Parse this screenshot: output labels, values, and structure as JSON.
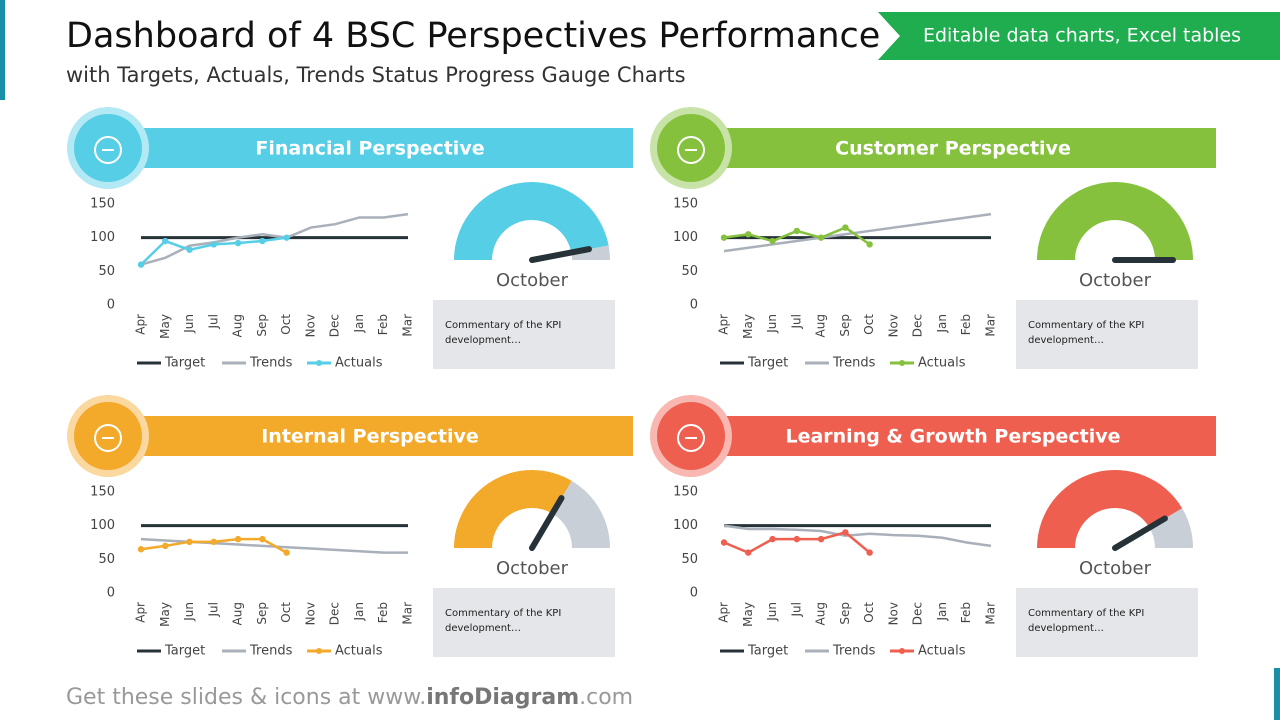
{
  "header": {
    "title": "Dashboard of 4 BSC Perspectives Performance",
    "subtitle": "with Targets, Actuals, Trends Status Progress Gauge Charts",
    "badge": "Editable data charts, Excel tables"
  },
  "footer": {
    "prefix": "Get these slides & icons at www.",
    "brand": "infoDiagram",
    "suffix": ".com"
  },
  "chart_data": [
    {
      "type": "line",
      "title": "Financial Perspective",
      "color": "#56cfe6",
      "commentary": "Commentary of the KPI development…",
      "categories": [
        "Apr",
        "May",
        "Jun",
        "Jul",
        "Aug",
        "Sep",
        "Oct",
        "Nov",
        "Dec",
        "Jan",
        "Feb",
        "Mar"
      ],
      "ylim": [
        0,
        150
      ],
      "yticks": [
        0,
        50,
        100,
        150
      ],
      "series": [
        {
          "name": "Target",
          "color": "#263238",
          "values": [
            100,
            100,
            100,
            100,
            100,
            100,
            100,
            100,
            100,
            100,
            100,
            100
          ]
        },
        {
          "name": "Trends",
          "color": "#a9b0ba",
          "values": [
            60,
            70,
            88,
            93,
            100,
            105,
            100,
            115,
            120,
            130,
            130,
            135
          ]
        },
        {
          "name": "Actuals",
          "color": "#56cfe6",
          "values": [
            60,
            95,
            82,
            90,
            92,
            95,
            100,
            null,
            null,
            null,
            null,
            null
          ]
        }
      ],
      "gauge": {
        "type": "gauge",
        "label": "October",
        "value": 94,
        "lim": [
          0,
          100
        ]
      }
    },
    {
      "type": "line",
      "title": "Customer Perspective",
      "color": "#85c13d",
      "commentary": "Commentary of the KPI development…",
      "categories": [
        "Apr",
        "May",
        "Jun",
        "Jul",
        "Aug",
        "Sep",
        "Oct",
        "Nov",
        "Dec",
        "Jan",
        "Feb",
        "Mar"
      ],
      "ylim": [
        0,
        150
      ],
      "yticks": [
        0,
        50,
        100,
        150
      ],
      "series": [
        {
          "name": "Target",
          "color": "#263238",
          "values": [
            100,
            100,
            100,
            100,
            100,
            100,
            100,
            100,
            100,
            100,
            100,
            100
          ]
        },
        {
          "name": "Trends",
          "color": "#a9b0ba",
          "values": [
            80,
            85,
            90,
            95,
            100,
            105,
            110,
            115,
            120,
            125,
            130,
            135
          ]
        },
        {
          "name": "Actuals",
          "color": "#85c13d",
          "values": [
            100,
            105,
            95,
            110,
            100,
            115,
            90,
            null,
            null,
            null,
            null,
            null
          ]
        }
      ],
      "gauge": {
        "type": "gauge",
        "label": "October",
        "value": 100,
        "lim": [
          0,
          100
        ]
      }
    },
    {
      "type": "line",
      "title": "Internal Perspective",
      "color": "#f3a92a",
      "commentary": "Commentary of the KPI development…",
      "categories": [
        "Apr",
        "May",
        "Jun",
        "Jul",
        "Aug",
        "Sep",
        "Oct",
        "Nov",
        "Dec",
        "Jan",
        "Feb",
        "Mar"
      ],
      "ylim": [
        0,
        150
      ],
      "yticks": [
        0,
        50,
        100,
        150
      ],
      "series": [
        {
          "name": "Target",
          "color": "#263238",
          "values": [
            100,
            100,
            100,
            100,
            100,
            100,
            100,
            100,
            100,
            100,
            100,
            100
          ]
        },
        {
          "name": "Trends",
          "color": "#a9b0ba",
          "values": [
            80,
            78,
            76,
            74,
            72,
            70,
            68,
            66,
            64,
            62,
            60,
            60
          ]
        },
        {
          "name": "Actuals",
          "color": "#f3a92a",
          "values": [
            65,
            70,
            76,
            76,
            80,
            80,
            60,
            null,
            null,
            null,
            null,
            null
          ]
        }
      ],
      "gauge": {
        "type": "gauge",
        "label": "October",
        "value": 67,
        "lim": [
          0,
          100
        ]
      }
    },
    {
      "type": "line",
      "title": "Learning & Growth Perspective",
      "color": "#ef5f50",
      "commentary": "Commentary of the KPI development…",
      "categories": [
        "Apr",
        "May",
        "Jun",
        "Jul",
        "Aug",
        "Sep",
        "Oct",
        "Nov",
        "Dec",
        "Jan",
        "Feb",
        "Mar"
      ],
      "ylim": [
        0,
        150
      ],
      "yticks": [
        0,
        50,
        100,
        150
      ],
      "series": [
        {
          "name": "Target",
          "color": "#263238",
          "values": [
            100,
            100,
            100,
            100,
            100,
            100,
            100,
            100,
            100,
            100,
            100,
            100
          ]
        },
        {
          "name": "Trends",
          "color": "#a9b0ba",
          "values": [
            100,
            95,
            95,
            94,
            92,
            85,
            88,
            86,
            85,
            82,
            75,
            70
          ]
        },
        {
          "name": "Actuals",
          "color": "#ef5f50",
          "values": [
            75,
            60,
            80,
            80,
            80,
            90,
            60,
            null,
            null,
            null,
            null,
            null
          ]
        }
      ],
      "gauge": {
        "type": "gauge",
        "label": "October",
        "value": 83,
        "lim": [
          0,
          100
        ]
      }
    }
  ]
}
